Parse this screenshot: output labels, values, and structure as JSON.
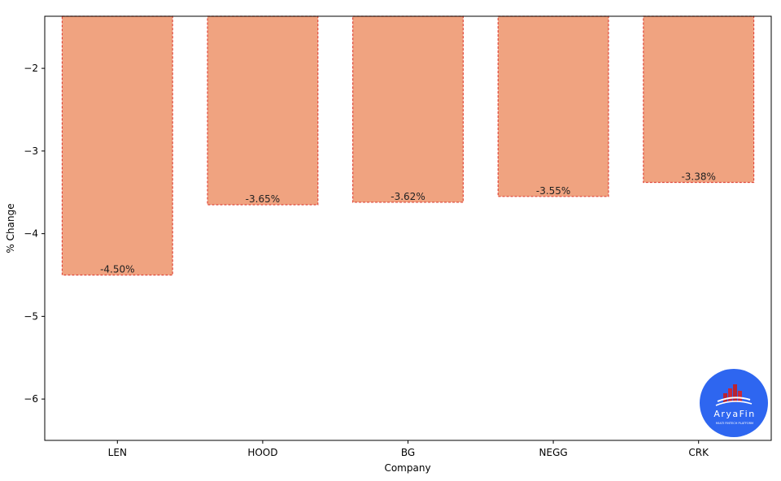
{
  "chart_data": {
    "type": "bar",
    "title": "",
    "xlabel": "Company",
    "ylabel": "% Change",
    "categories": [
      "LEN",
      "HOOD",
      "BG",
      "NEGG",
      "CRK"
    ],
    "values": [
      -4.5,
      -3.65,
      -3.62,
      -3.55,
      -3.38
    ],
    "data_labels": [
      "-4.50%",
      "-3.65%",
      "-3.62%",
      "-3.55%",
      "-3.38%"
    ],
    "ylim": [
      -6.5,
      -1.37
    ],
    "yticks": [
      -2,
      -3,
      -4,
      -5,
      -6
    ],
    "ytick_labels": [
      "−2",
      "−3",
      "−4",
      "−5",
      "−6"
    ],
    "grid": false,
    "bar_color": "#f0a380",
    "bar_edge_color": "#e0473a"
  },
  "logo": {
    "text": "AryaFin",
    "tagline": "MULTI FINTECH PLATFORM",
    "background_color": "#2e66f0"
  }
}
